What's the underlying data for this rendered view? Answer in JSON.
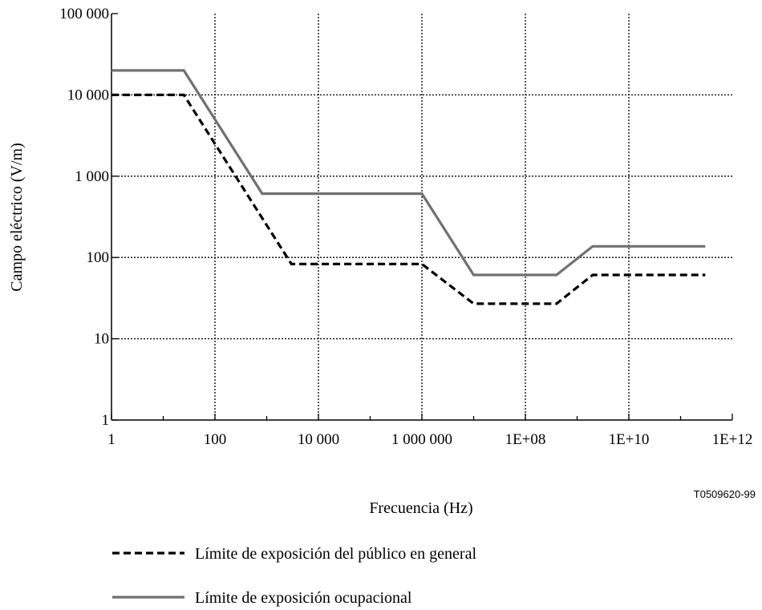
{
  "chart_data": {
    "type": "line",
    "xlabel": "Frecuencia (Hz)",
    "ylabel": "Campo eléctrico (V/m)",
    "figure_code": "T0509620-99",
    "x_scale": "log",
    "y_scale": "log",
    "xlim": [
      1,
      1000000000000.0
    ],
    "ylim": [
      1,
      100000
    ],
    "grid": true,
    "grid_style": "dotted",
    "legend_position": "bottom-left",
    "x_ticks": [
      {
        "value": 1,
        "label": "1"
      },
      {
        "value": 100,
        "label": "100"
      },
      {
        "value": 10000,
        "label": "10 000"
      },
      {
        "value": 1000000,
        "label": "1 000 000"
      },
      {
        "value": 100000000,
        "label": "1E+08"
      },
      {
        "value": 10000000000,
        "label": "1E+10"
      },
      {
        "value": 1000000000000,
        "label": "1E+12"
      }
    ],
    "y_ticks": [
      {
        "value": 1,
        "label": "1"
      },
      {
        "value": 10,
        "label": "10"
      },
      {
        "value": 100,
        "label": "100"
      },
      {
        "value": 1000,
        "label": "1 000"
      },
      {
        "value": 10000,
        "label": "10 000"
      },
      {
        "value": 100000,
        "label": "100 000"
      }
    ],
    "series": [
      {
        "name": "Límite de exposición del público en general",
        "color": "#000000",
        "style": "dashed",
        "points": [
          {
            "x": 1,
            "y": 10000
          },
          {
            "x": 25,
            "y": 10000
          },
          {
            "x": 3000,
            "y": 83
          },
          {
            "x": 1000000,
            "y": 83
          },
          {
            "x": 10000000,
            "y": 27
          },
          {
            "x": 400000000,
            "y": 27
          },
          {
            "x": 2000000000,
            "y": 61
          },
          {
            "x": 300000000000,
            "y": 61
          }
        ]
      },
      {
        "name": "Límite de exposición ocupacional",
        "color": "#707070",
        "style": "solid",
        "points": [
          {
            "x": 1,
            "y": 20000
          },
          {
            "x": 25,
            "y": 20000
          },
          {
            "x": 820,
            "y": 610
          },
          {
            "x": 1000000,
            "y": 610
          },
          {
            "x": 10000000,
            "y": 61
          },
          {
            "x": 400000000,
            "y": 61
          },
          {
            "x": 2000000000,
            "y": 137
          },
          {
            "x": 300000000000,
            "y": 137
          }
        ]
      }
    ]
  }
}
